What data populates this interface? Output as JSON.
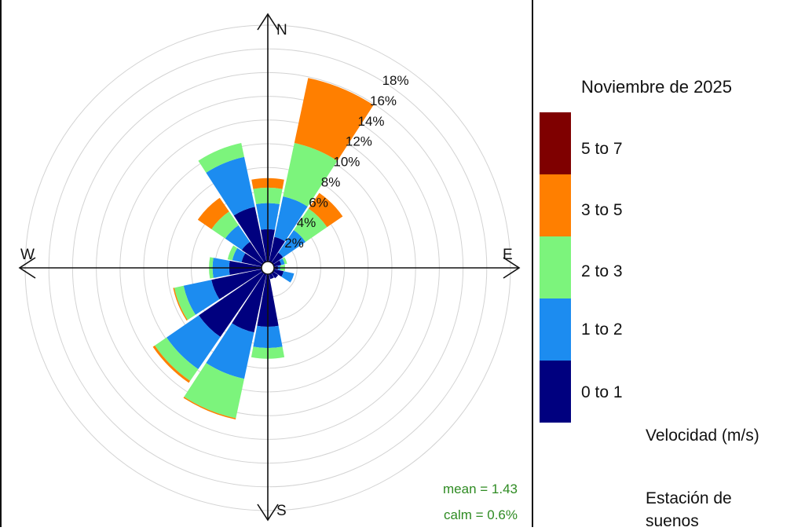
{
  "chart_data": {
    "type": "windrose",
    "directions": [
      "N",
      "NNE",
      "NE",
      "ENE",
      "E",
      "ESE",
      "SE",
      "SSE",
      "S",
      "SSW",
      "SW",
      "WSW",
      "W",
      "WNW",
      "NW",
      "NNW"
    ],
    "bins": [
      "0 to 1",
      "1 to 2",
      "2 to 3",
      "3 to 5",
      "5 to 7"
    ],
    "colors": [
      "#00007f",
      "#1c8cf0",
      "#7cf47c",
      "#ff7f00",
      "#7f0000"
    ],
    "frequencies": [
      [
        2.8,
        2.2,
        1.3,
        0.8,
        0
      ],
      [
        2.2,
        3.5,
        4.6,
        5.6,
        0
      ],
      [
        1.1,
        2.3,
        2.2,
        1.6,
        0
      ],
      [
        0.7,
        0.3,
        0.2,
        0.0,
        0
      ],
      [
        0.4,
        0.2,
        0.4,
        0.0,
        0
      ],
      [
        0.9,
        0.9,
        0.0,
        0.0,
        0
      ],
      [
        0.6,
        0.0,
        0.0,
        0.0,
        0
      ],
      [
        0.5,
        0.0,
        0.0,
        0.0,
        0
      ],
      [
        4.5,
        1.8,
        0.9,
        0.0,
        0
      ],
      [
        5.1,
        4.0,
        3.4,
        0.1,
        0
      ],
      [
        6.6,
        3.3,
        1.2,
        0.2,
        0
      ],
      [
        4.4,
        2.4,
        0.8,
        0.1,
        0
      ],
      [
        2.8,
        1.4,
        0.3,
        0.0,
        0
      ],
      [
        1.8,
        0.8,
        0.4,
        0.0,
        0
      ],
      [
        2.2,
        1.7,
        1.4,
        1.4,
        0
      ],
      [
        4.8,
        4.3,
        1.2,
        0.0,
        0
      ]
    ],
    "rings": [
      2,
      4,
      6,
      8,
      10,
      12,
      14,
      16,
      18,
      20
    ],
    "ring_labels": [
      "2%",
      "4%",
      "6%",
      "8%",
      "10%",
      "12%",
      "14%",
      "16%",
      "18%"
    ],
    "axis_labels": {
      "n": "N",
      "e": "E",
      "s": "S",
      "w": "W"
    },
    "stats": {
      "mean": "mean = 1.43",
      "calm": "calm = 0.6%"
    },
    "legend": {
      "title": "Noviembre de 2025",
      "entries": [
        "5 to 7",
        "3 to 5",
        "2 to 3",
        "1 to 2",
        "0 to 1"
      ],
      "unit": "Velocidad (m/s)"
    },
    "footer": {
      "line1": "Estación de",
      "line2": "suenos"
    }
  }
}
